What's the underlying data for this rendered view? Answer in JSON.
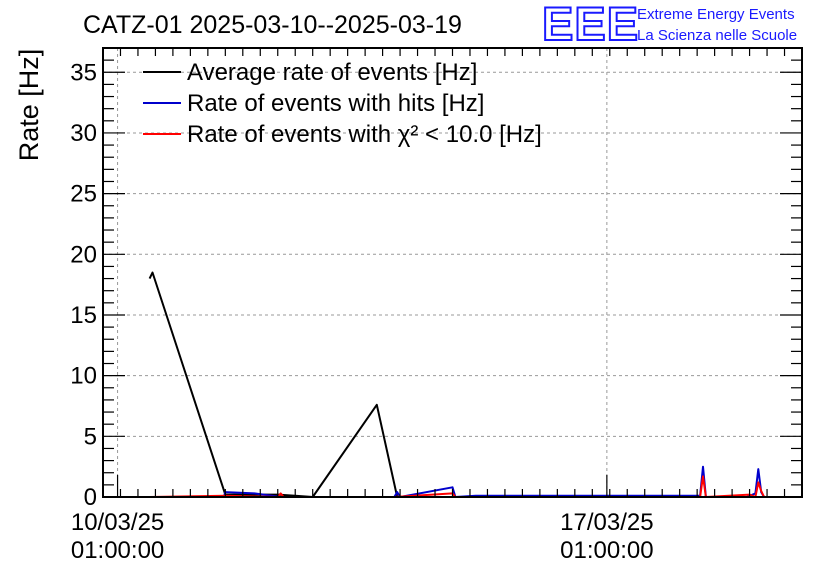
{
  "header": {
    "title": "CATZ-01 2025-03-10--2025-03-19",
    "logo_letters": "EEE",
    "logo_line1": "Extreme Energy Events",
    "logo_line2": "La Scienza nelle Scuole"
  },
  "chart_data": {
    "type": "line",
    "title": "CATZ-01 2025-03-10--2025-03-19",
    "ylabel": "Rate [Hz]",
    "xlabel": "",
    "xlim": [
      "2025-03-09 20:00",
      "2025-03-19 20:00"
    ],
    "ylim": [
      0,
      37
    ],
    "yticks": [
      0,
      5,
      10,
      15,
      20,
      25,
      30,
      35
    ],
    "xticks": [
      {
        "x": "2025-03-10 01:00",
        "line1": "10/03/25",
        "line2": "01:00:00"
      },
      {
        "x": "2025-03-17 01:00",
        "line1": "17/03/25",
        "line2": "01:00:00"
      }
    ],
    "grid": true,
    "legend_position": "top-left",
    "series": [
      {
        "name": "Average rate of events [Hz]",
        "color": "#000000",
        "points": [
          [
            "2025-03-10 12:00",
            18.0
          ],
          [
            "2025-03-10 13:00",
            18.5
          ],
          [
            "2025-03-11 14:00",
            0.2
          ],
          [
            "2025-03-12 08:00",
            0.2
          ],
          [
            "2025-03-12 14:00",
            0.1
          ],
          [
            "2025-03-12 20:00",
            0.0
          ],
          [
            "2025-03-13 18:00",
            7.6
          ],
          [
            "2025-03-14 01:00",
            0.0
          ]
        ]
      },
      {
        "name": "Rate of events with hits [Hz]",
        "color": "#0000cc",
        "points": [
          [
            "2025-03-10 12:00",
            0.0
          ],
          [
            "2025-03-11 13:30",
            0.0
          ],
          [
            "2025-03-11 14:00",
            0.4
          ],
          [
            "2025-03-12 00:00",
            0.3
          ],
          [
            "2025-03-12 09:00",
            0.0
          ],
          [
            "2025-03-14 00:00",
            0.0
          ],
          [
            "2025-03-14 01:00",
            0.4
          ],
          [
            "2025-03-14 02:00",
            0.0
          ],
          [
            "2025-03-14 20:00",
            0.8
          ],
          [
            "2025-03-14 21:00",
            0.0
          ],
          [
            "2025-03-15 04:00",
            0.1
          ],
          [
            "2025-03-18 09:00",
            0.1
          ],
          [
            "2025-03-18 10:00",
            2.5
          ],
          [
            "2025-03-18 11:00",
            0.0
          ],
          [
            "2025-03-19 01:00",
            0.0
          ],
          [
            "2025-03-19 04:00",
            0.3
          ],
          [
            "2025-03-19 05:00",
            2.3
          ],
          [
            "2025-03-19 06:00",
            0.4
          ],
          [
            "2025-03-19 07:00",
            0.0
          ],
          [
            "2025-03-19 12:00",
            0.0
          ]
        ]
      },
      {
        "name": "Rate of events with χ² < 10.0 [Hz]",
        "color": "#ff0000",
        "points": [
          [
            "2025-03-10 12:00",
            0.0
          ],
          [
            "2025-03-11 14:00",
            0.1
          ],
          [
            "2025-03-12 08:00",
            0.0
          ],
          [
            "2025-03-12 09:00",
            0.3
          ],
          [
            "2025-03-12 10:00",
            0.0
          ],
          [
            "2025-03-14 00:00",
            0.0
          ],
          [
            "2025-03-14 20:00",
            0.3
          ],
          [
            "2025-03-14 21:00",
            0.0
          ],
          [
            "2025-03-18 09:00",
            0.0
          ],
          [
            "2025-03-18 10:00",
            1.7
          ],
          [
            "2025-03-18 11:00",
            0.0
          ],
          [
            "2025-03-19 02:00",
            0.2
          ],
          [
            "2025-03-19 04:00",
            0.0
          ],
          [
            "2025-03-19 05:00",
            1.2
          ],
          [
            "2025-03-19 06:00",
            0.5
          ],
          [
            "2025-03-19 07:00",
            0.0
          ],
          [
            "2025-03-19 12:00",
            0.0
          ]
        ]
      }
    ]
  }
}
